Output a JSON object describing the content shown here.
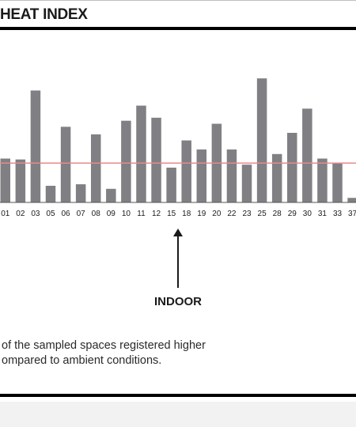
{
  "header": {
    "title": "HEAT INDEX"
  },
  "chart_data": {
    "type": "bar",
    "categories": [
      "01",
      "02",
      "03",
      "05",
      "06",
      "07",
      "08",
      "09",
      "10",
      "11",
      "12",
      "15",
      "18",
      "19",
      "20",
      "22",
      "23",
      "25",
      "28",
      "29",
      "30",
      "31",
      "33",
      "37"
    ],
    "values": [
      1.45,
      1.42,
      3.7,
      0.55,
      2.5,
      0.6,
      2.25,
      0.45,
      2.7,
      3.2,
      2.8,
      1.15,
      2.05,
      1.75,
      2.6,
      1.75,
      1.25,
      4.1,
      1.6,
      2.3,
      3.1,
      1.45,
      1.3,
      0.15
    ],
    "reference_line": 1.3,
    "ylim": [
      0,
      4.6
    ],
    "colors": {
      "bar": "#808084",
      "reference": "#e88a8a",
      "axis": "#555555"
    }
  },
  "annotation": {
    "label": "INDOOR"
  },
  "note": {
    "line1": "of the sampled spaces registered higher",
    "line2": "ompared to ambient conditions."
  }
}
